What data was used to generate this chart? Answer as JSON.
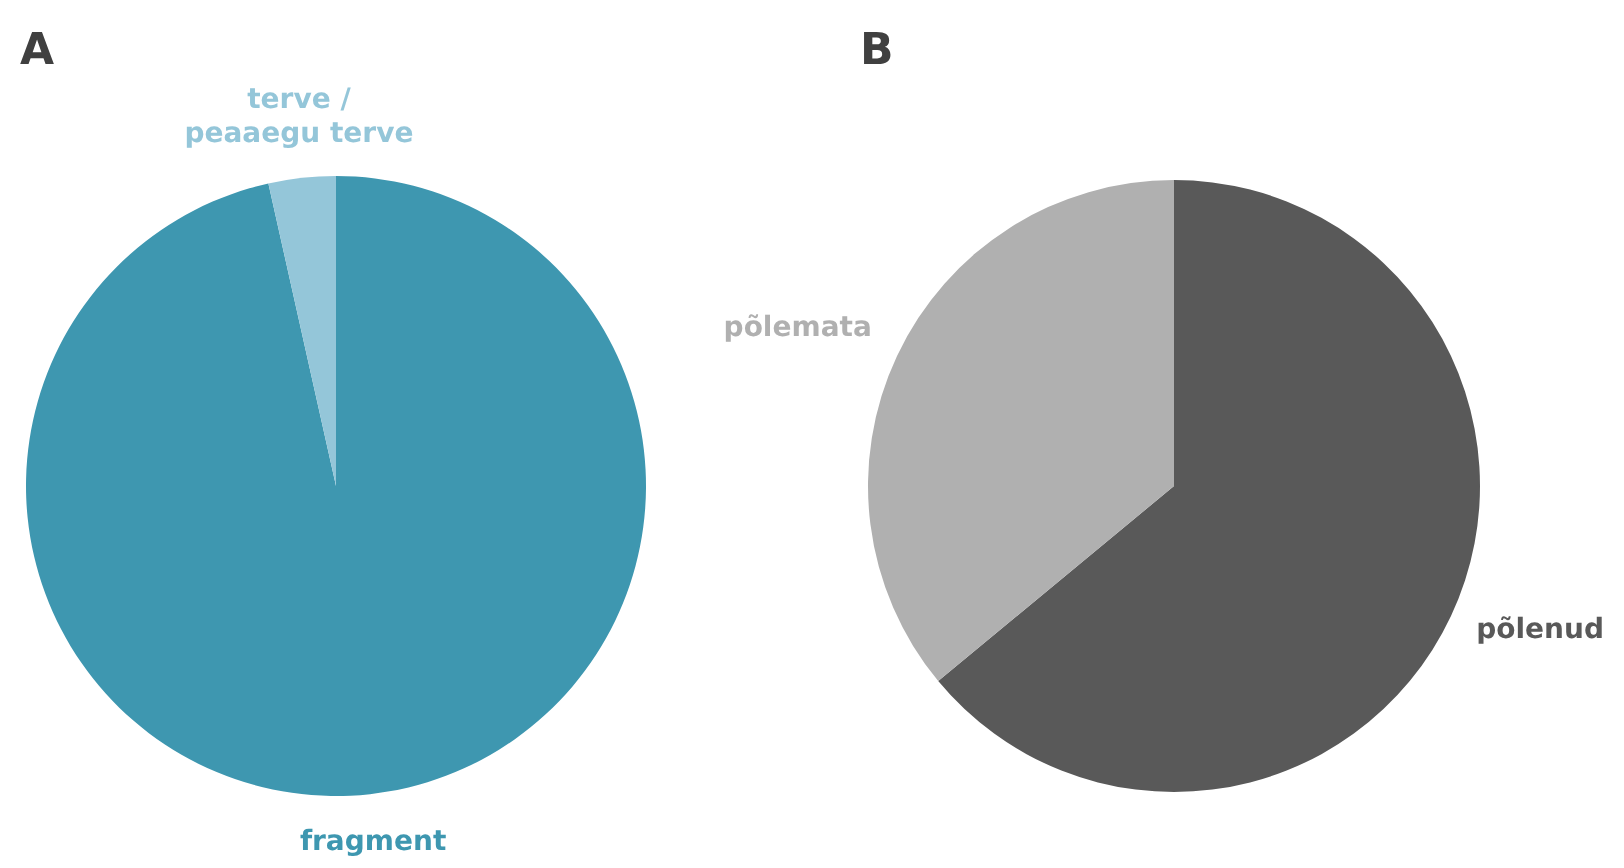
{
  "chart_data": [
    {
      "type": "pie",
      "title": "A",
      "categories": [
        "fragment",
        "terve / peaaegu terve"
      ],
      "values": [
        96.5,
        3.5
      ],
      "colors": [
        "#3e97b0",
        "#94c6d9"
      ],
      "legend": false
    },
    {
      "type": "pie",
      "title": "B",
      "categories": [
        "põlenud",
        "põlemata"
      ],
      "values": [
        64,
        36
      ],
      "colors": [
        "#595959",
        "#b0b0b0"
      ],
      "legend": false
    }
  ]
}
